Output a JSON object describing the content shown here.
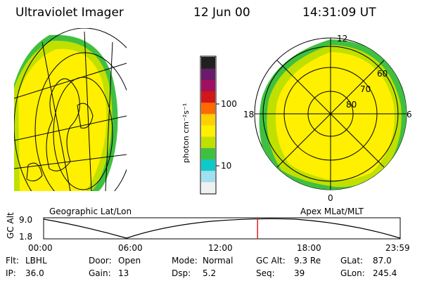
{
  "header": {
    "instrument": "Ultraviolet Imager",
    "date": "12 Jun 00",
    "time": "14:31:09 UT"
  },
  "geo_panel": {
    "caption": "Geographic Lat/Lon"
  },
  "polar_panel": {
    "caption": "Apex MLat/MLT",
    "mlt_labels": [
      "12",
      "18",
      "6",
      "0"
    ],
    "lat_labels": [
      "60",
      "70",
      "80"
    ]
  },
  "colorbar": {
    "unit": "photon cm⁻²s⁻¹",
    "ticks": [
      "100",
      "10"
    ],
    "colors": [
      "#202020",
      "#6a1a6a",
      "#a01060",
      "#d01818",
      "#ff6a00",
      "#ffd000",
      "#fff000",
      "#c0e000",
      "#40c040",
      "#10c8c8",
      "#a0e0f0",
      "#f0f0f0"
    ]
  },
  "timeline": {
    "ylabel": "GC Alt",
    "y_ticks": [
      "9.0",
      "1.8"
    ],
    "x_ticks": [
      "00:00",
      "06:00",
      "12:00",
      "18:00",
      "23:59"
    ],
    "marker_color": "#e02020",
    "current_time_fraction": 0.6
  },
  "info": {
    "row1": [
      {
        "label": "Flt:",
        "value": "LBHL"
      },
      {
        "label": "Door:",
        "value": "Open"
      },
      {
        "label": "Mode:",
        "value": "Normal"
      },
      {
        "label": "GC Alt:",
        "value": "9.3 Re"
      },
      {
        "label": "GLat:",
        "value": "87.0"
      }
    ],
    "row2": [
      {
        "label": "IP:",
        "value": "36.0"
      },
      {
        "label": "Gain:",
        "value": "13"
      },
      {
        "label": "Dsp:",
        "value": "5.2"
      },
      {
        "label": "Seq:",
        "value": "39"
      },
      {
        "label": "GLon:",
        "value": "245.4"
      }
    ]
  }
}
